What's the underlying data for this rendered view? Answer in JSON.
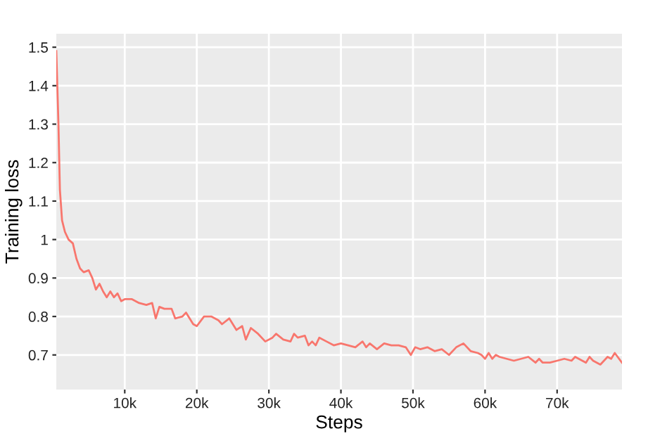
{
  "chart_data": {
    "type": "line",
    "xlabel": "Steps",
    "ylabel": "Training loss",
    "xlim": [
      500,
      79000
    ],
    "ylim": [
      0.61,
      1.535
    ],
    "xticks": [
      {
        "value": 10000,
        "label": "10k"
      },
      {
        "value": 20000,
        "label": "20k"
      },
      {
        "value": 30000,
        "label": "30k"
      },
      {
        "value": 40000,
        "label": "40k"
      },
      {
        "value": 50000,
        "label": "50k"
      },
      {
        "value": 60000,
        "label": "60k"
      },
      {
        "value": 70000,
        "label": "70k"
      }
    ],
    "yticks": [
      0.7,
      0.8,
      0.9,
      1,
      1.1,
      1.2,
      1.3,
      1.4,
      1.5
    ],
    "grid": true,
    "legend": false,
    "marker": "none",
    "line_style": "solid",
    "series": [
      {
        "color": "#f8766d",
        "x": [
          500,
          800,
          1000,
          1300,
          1700,
          2200,
          2800,
          3300,
          3800,
          4300,
          5000,
          5500,
          6000,
          6500,
          7000,
          7500,
          8000,
          8500,
          9000,
          9500,
          10000,
          11000,
          12000,
          13000,
          13800,
          14300,
          14800,
          15500,
          16500,
          17000,
          18000,
          18500,
          19500,
          20000,
          21000,
          22000,
          23000,
          23500,
          24500,
          25500,
          26300,
          26800,
          27500,
          28500,
          29500,
          30500,
          31000,
          32000,
          33000,
          33500,
          34000,
          35000,
          35500,
          36000,
          36500,
          37000,
          38000,
          39000,
          40000,
          41000,
          42000,
          43000,
          43500,
          44000,
          45000,
          46000,
          47000,
          48000,
          49000,
          49700,
          50300,
          51000,
          52000,
          53000,
          54000,
          55000,
          56000,
          57000,
          58000,
          59000,
          59500,
          60000,
          60500,
          61000,
          61500,
          62000,
          63000,
          64000,
          65000,
          66000,
          67000,
          67500,
          68000,
          69000,
          70000,
          71000,
          72000,
          72500,
          73000,
          74000,
          74500,
          75000,
          76000,
          77000,
          77500,
          78000,
          79000
        ],
        "values": [
          1.49,
          1.3,
          1.13,
          1.05,
          1.02,
          1.0,
          0.99,
          0.95,
          0.925,
          0.915,
          0.92,
          0.9,
          0.87,
          0.885,
          0.865,
          0.85,
          0.865,
          0.85,
          0.86,
          0.84,
          0.845,
          0.845,
          0.835,
          0.83,
          0.835,
          0.795,
          0.825,
          0.82,
          0.82,
          0.795,
          0.8,
          0.81,
          0.78,
          0.775,
          0.8,
          0.8,
          0.79,
          0.78,
          0.795,
          0.765,
          0.775,
          0.74,
          0.77,
          0.755,
          0.735,
          0.745,
          0.755,
          0.74,
          0.735,
          0.755,
          0.745,
          0.75,
          0.725,
          0.735,
          0.725,
          0.745,
          0.735,
          0.725,
          0.73,
          0.725,
          0.72,
          0.735,
          0.72,
          0.73,
          0.715,
          0.73,
          0.725,
          0.725,
          0.72,
          0.7,
          0.72,
          0.715,
          0.72,
          0.71,
          0.715,
          0.7,
          0.72,
          0.73,
          0.71,
          0.705,
          0.7,
          0.69,
          0.705,
          0.69,
          0.7,
          0.695,
          0.69,
          0.685,
          0.69,
          0.695,
          0.68,
          0.69,
          0.68,
          0.68,
          0.685,
          0.69,
          0.685,
          0.695,
          0.69,
          0.68,
          0.695,
          0.685,
          0.675,
          0.695,
          0.69,
          0.705,
          0.68
        ]
      }
    ]
  }
}
